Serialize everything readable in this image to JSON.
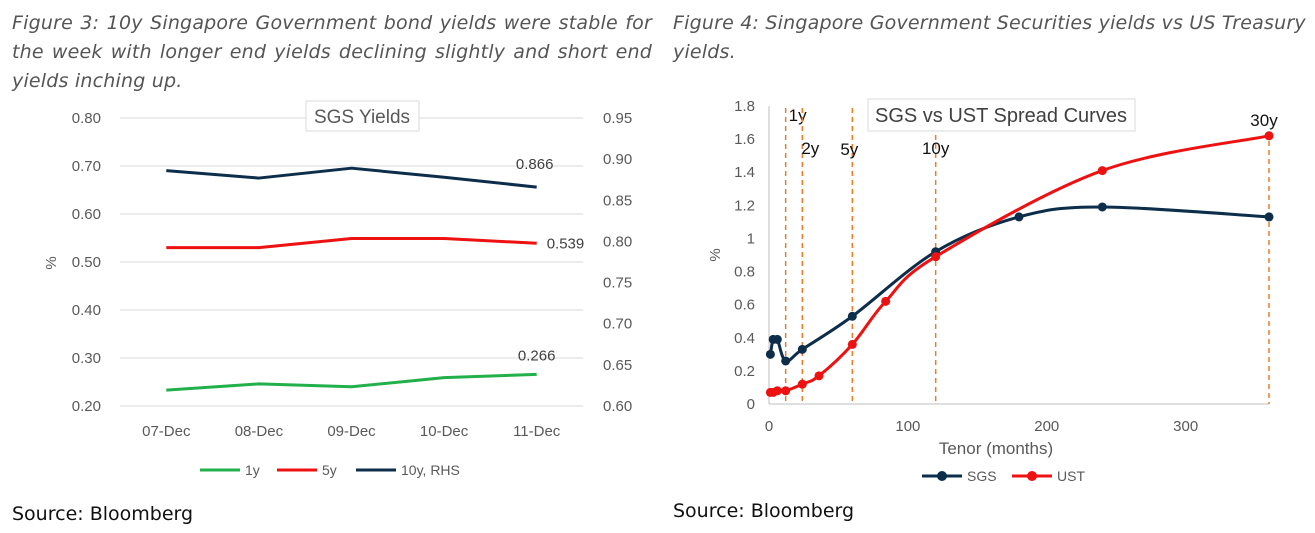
{
  "figure3": {
    "caption": "Figure 3: 10y Singapore Government bond yields were stable for the week with longer end yields declining slightly and short end yields inching up.",
    "source": "Source: Bloomberg"
  },
  "figure4": {
    "caption": "Figure 4: Singapore Government Securities yields vs US Treasury yields.",
    "source": "Source: Bloomberg"
  },
  "chart_data": [
    {
      "type": "line",
      "title": "SGS Yields",
      "ylabel": "%",
      "categories": [
        "07-Dec",
        "08-Dec",
        "09-Dec",
        "10-Dec",
        "11-Dec"
      ],
      "ylim": [
        0.2,
        0.8
      ],
      "yticks": [
        "0.80",
        "0.70",
        "0.60",
        "0.50",
        "0.40",
        "0.30",
        "0.20"
      ],
      "y2lim": [
        0.6,
        0.95
      ],
      "y2ticks": [
        "0.95",
        "0.90",
        "0.85",
        "0.80",
        "0.75",
        "0.70",
        "0.65",
        "0.60"
      ],
      "series": [
        {
          "name": "1y",
          "axis": "left",
          "color": "#22b04b",
          "values": [
            0.233,
            0.246,
            0.24,
            0.259,
            0.266
          ],
          "last_label": "0.266"
        },
        {
          "name": "5y",
          "axis": "left",
          "color": "#ee1111",
          "values": [
            0.53,
            0.53,
            0.549,
            0.549,
            0.539
          ],
          "last_label": "0.539"
        },
        {
          "name": "10y, RHS",
          "axis": "right",
          "color": "#0d2e4a",
          "values": [
            0.886,
            0.877,
            0.889,
            0.878,
            0.866
          ],
          "last_label": "0.866"
        }
      ],
      "legend": "bottom",
      "grid": true
    },
    {
      "type": "line",
      "title": "SGS vs UST Spread Curves",
      "xlabel": "Tenor (months)",
      "ylabel": "%",
      "xlim": [
        0,
        360
      ],
      "xticks": [
        0,
        100,
        200,
        300
      ],
      "ylim": [
        0,
        1.8
      ],
      "yticks": [
        "1.8",
        "1.6",
        "1.4",
        "1.2",
        "1",
        "0.8",
        "0.6",
        "0.4",
        "0.2",
        "0"
      ],
      "series": [
        {
          "name": "SGS",
          "color": "#0d2e4a",
          "x": [
            1,
            3,
            6,
            12,
            24,
            60,
            120,
            180,
            240,
            360
          ],
          "y": [
            0.3,
            0.39,
            0.39,
            0.26,
            0.33,
            0.53,
            0.92,
            1.13,
            1.19,
            1.13
          ]
        },
        {
          "name": "UST",
          "color": "#ee1111",
          "x": [
            1,
            3,
            6,
            12,
            24,
            36,
            60,
            84,
            120,
            240,
            360
          ],
          "y": [
            0.07,
            0.07,
            0.08,
            0.08,
            0.12,
            0.17,
            0.36,
            0.62,
            0.89,
            1.41,
            1.62
          ]
        }
      ],
      "annotations": [
        {
          "label": "1y",
          "x": 12
        },
        {
          "label": "2y",
          "x": 24
        },
        {
          "label": "5y",
          "x": 60
        },
        {
          "label": "10y",
          "x": 120
        },
        {
          "label": "30y",
          "x": 360
        }
      ],
      "annotation_color": "#f07a2a",
      "legend": "bottom",
      "grid": false
    }
  ]
}
